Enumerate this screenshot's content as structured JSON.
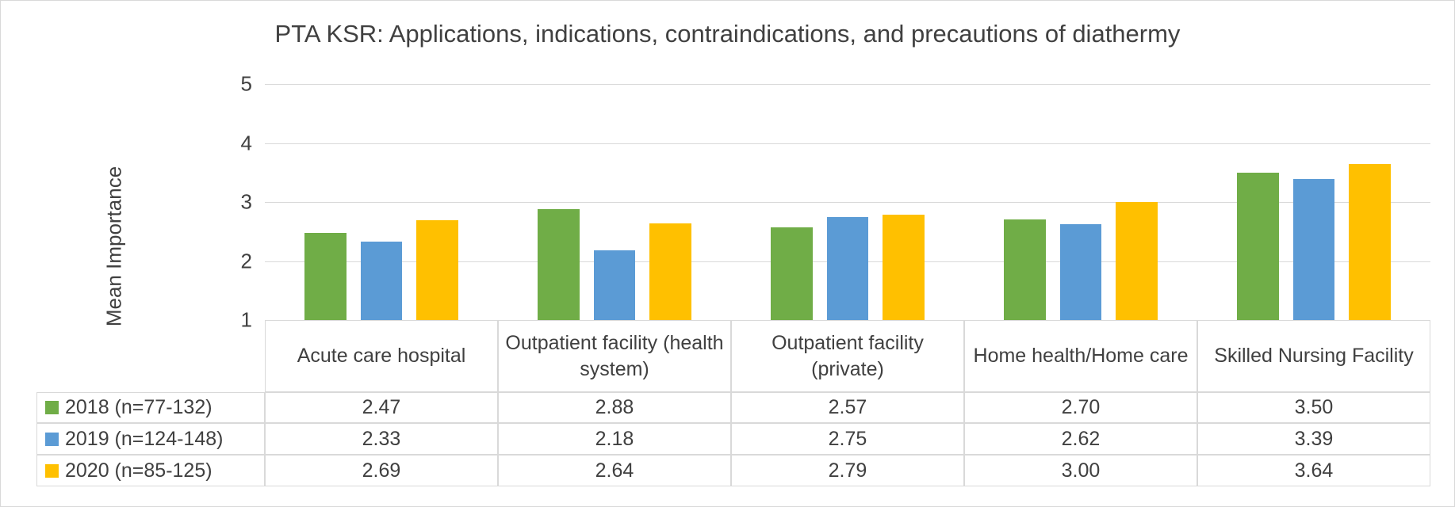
{
  "chart_data": {
    "type": "bar",
    "title": "PTA KSR: Applications, indications, contraindications, and precautions of diathermy",
    "ylabel": "Mean Importance",
    "categories": [
      "Acute care hospital",
      "Outpatient facility (health system)",
      "Outpatient facility (private)",
      "Home health/Home care",
      "Skilled Nursing Facility"
    ],
    "series": [
      {
        "name": "2018 (n=77-132)",
        "color": "#70ad47",
        "values": [
          2.47,
          2.88,
          2.57,
          2.7,
          3.5
        ],
        "value_labels": [
          "2.47",
          "2.88",
          "2.57",
          "2.70",
          "3.50"
        ]
      },
      {
        "name": "2019 (n=124-148)",
        "color": "#5b9bd5",
        "values": [
          2.33,
          2.18,
          2.75,
          2.62,
          3.39
        ],
        "value_labels": [
          "2.33",
          "2.18",
          "2.75",
          "2.62",
          "3.39"
        ]
      },
      {
        "name": "2020 (n=85-125)",
        "color": "#ffc000",
        "values": [
          2.69,
          2.64,
          2.79,
          3,
          3.64
        ],
        "value_labels": [
          "2.69",
          "2.64",
          "2.79",
          "3.00",
          "3.64"
        ]
      }
    ],
    "ylim": [
      1,
      5
    ],
    "yticks": [
      1,
      2,
      3,
      4,
      5
    ],
    "grid": true
  }
}
